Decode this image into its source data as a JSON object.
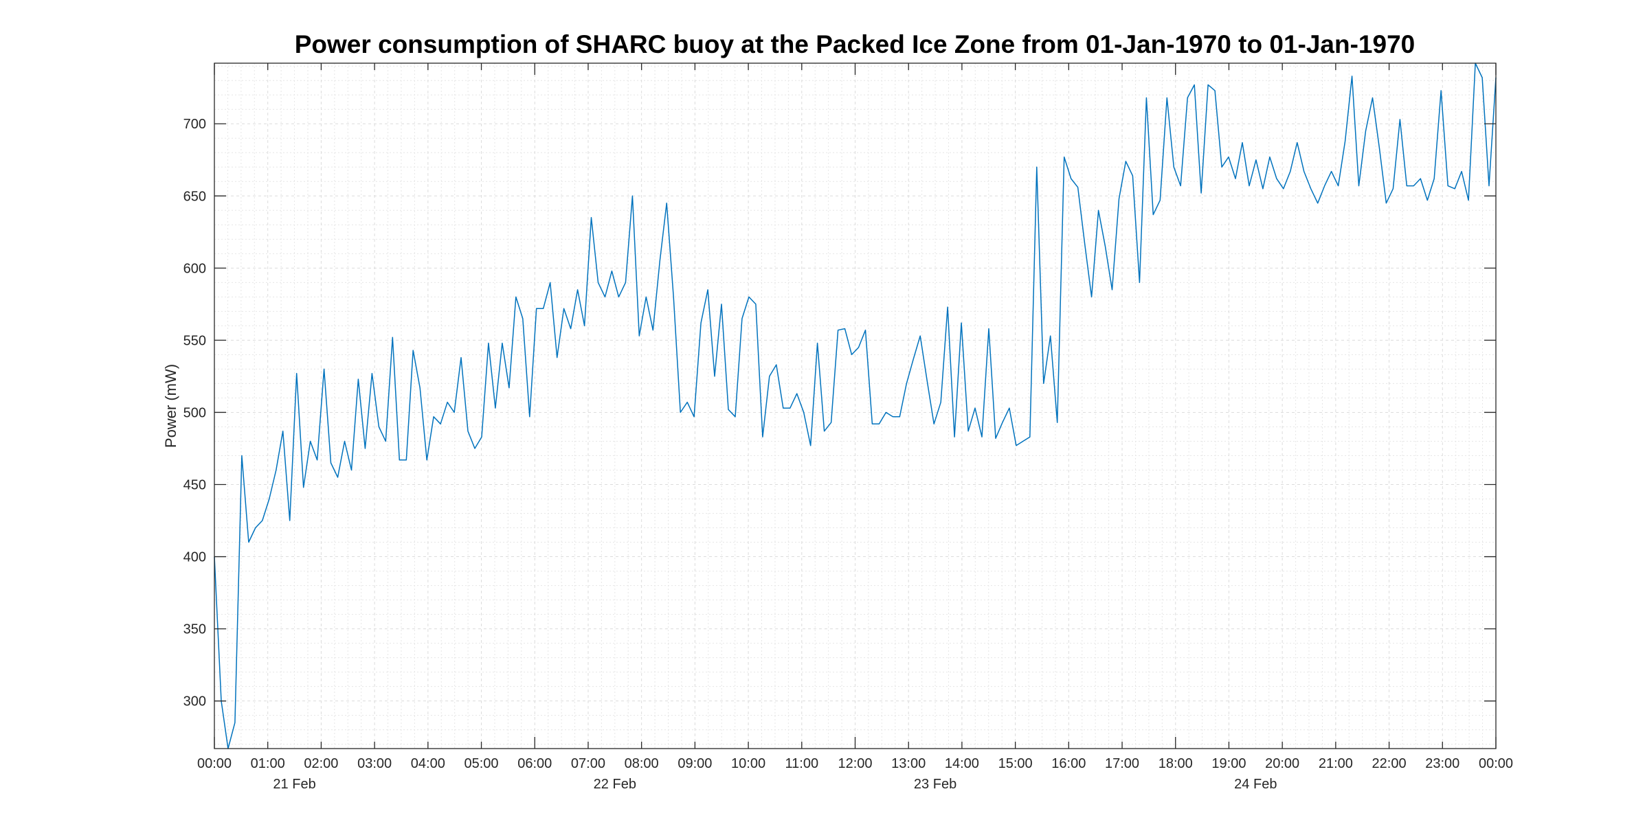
{
  "chart_data": {
    "type": "line",
    "title": "Power consumption of SHARC buoy at the Packed Ice Zone from 01-Jan-1970 to 01-Jan-1970",
    "xlabel": "",
    "ylabel": "Power (mW)",
    "xlim": [
      "00:00",
      "00:00 (+4 days)"
    ],
    "ylim": [
      267,
      742
    ],
    "grid": true,
    "minor_grid": true,
    "line_color": "#0072bd",
    "y_ticks": [
      300,
      350,
      400,
      450,
      500,
      550,
      600,
      650,
      700
    ],
    "x_tick_labels": [
      "00:00",
      "01:00",
      "02:00",
      "03:00",
      "04:00",
      "05:00",
      "06:00",
      "07:00",
      "08:00",
      "09:00",
      "10:00",
      "11:00",
      "12:00",
      "13:00",
      "14:00",
      "15:00",
      "16:00",
      "17:00",
      "18:00",
      "19:00",
      "20:00",
      "21:00",
      "22:00",
      "23:00",
      "00:00"
    ],
    "date_labels": [
      "21 Feb",
      "22 Feb",
      "23 Feb",
      "24 Feb"
    ],
    "series": [
      {
        "values": [
          400,
          300,
          267,
          285,
          470,
          410,
          420,
          425,
          440,
          460,
          487,
          425,
          527,
          448,
          480,
          467,
          530,
          465,
          455,
          480,
          460,
          523,
          475,
          527,
          490,
          480,
          552,
          467,
          467,
          543,
          517,
          467,
          497,
          492,
          507,
          500,
          538,
          487,
          475,
          483,
          548,
          503,
          548,
          517,
          580,
          565,
          497,
          572,
          572,
          590,
          538,
          572,
          558,
          585,
          560,
          635,
          590,
          580,
          598,
          580,
          590,
          650,
          553,
          580,
          557,
          605,
          645,
          580,
          500,
          507,
          497,
          562,
          585,
          525,
          575,
          502,
          497,
          565,
          580,
          575,
          483,
          525,
          533,
          503,
          503,
          513,
          500,
          477,
          548,
          487,
          493,
          557,
          558,
          540,
          545,
          557,
          492,
          492,
          500,
          497,
          497,
          520,
          537,
          553,
          522,
          492,
          507,
          573,
          483,
          562,
          487,
          503,
          483,
          558,
          482,
          493,
          503,
          477,
          480,
          483,
          670,
          520,
          553,
          493,
          677,
          662,
          656,
          617,
          580,
          640,
          615,
          585,
          648,
          674,
          664,
          590,
          718,
          637,
          647,
          718,
          670,
          657,
          718,
          727,
          652,
          727,
          723,
          670,
          677,
          662,
          687,
          657,
          675,
          655,
          677,
          662,
          655,
          667,
          687,
          667,
          655,
          645,
          657,
          667,
          657,
          688,
          733,
          657,
          695,
          718,
          683,
          645,
          655,
          703,
          657,
          657,
          662,
          647,
          662,
          723,
          657,
          655,
          667,
          647,
          742,
          732,
          657,
          732
        ]
      }
    ]
  }
}
